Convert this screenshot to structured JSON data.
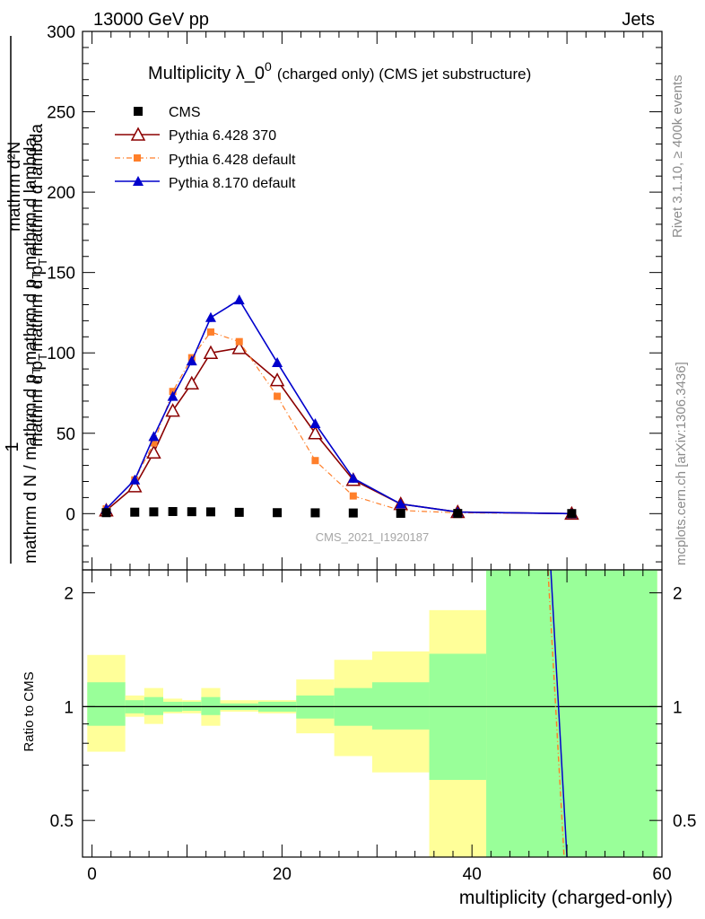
{
  "header": {
    "left": "13000 GeV pp",
    "right": "Jets"
  },
  "side_text": {
    "rivet": "Rivet 3.1.10, ≥ 400k events",
    "mcplots": "mcplots.cern.ch [arXiv:1306.3436]"
  },
  "chart_data": [
    {
      "type": "scatter",
      "title_main": "Multiplicity λ_0",
      "title_sup": "0",
      "title_sub": "(charged only) (CMS jet substructure)",
      "ylabel_top": "mathrm d²N",
      "ylabel_fracone": "1",
      "ylabel_middle": "mathrm d p",
      "ylabel_middle_sub": "T",
      "ylabel_middle_rest": "mathrm d p",
      "ylabel_middle_rest_sub": "T",
      "ylabel_middle_tail": "mathrm d lambda",
      "ylabel_bottom": "mathrm d N / mathrm d p",
      "ylabel_bottom_sub": "T",
      "ylabel_bottom_tail": "mathrm d p",
      "ylabel_bottom_sub2": "T",
      "ylabel_bottom_end": "mathrm d lambda",
      "watermark": "CMS_2021_I1920187",
      "xlim": [
        -1,
        60
      ],
      "ylim": [
        -35,
        300
      ],
      "yticks": [
        "0",
        "50",
        "100",
        "150",
        "200",
        "250",
        "300"
      ],
      "ytick_values": [
        0,
        50,
        100,
        150,
        200,
        250,
        300
      ],
      "legend_position": "top-left",
      "series": [
        {
          "name": "CMS",
          "color": "#000000",
          "marker": "square",
          "x": [
            1.5,
            4.5,
            6.5,
            8.5,
            10.5,
            12.5,
            15.5,
            19.5,
            23.5,
            27.5,
            32.5,
            38.5,
            50.5
          ],
          "y": [
            0.6,
            0.9,
            1.1,
            1.3,
            1.2,
            1.1,
            0.8,
            0.6,
            0.5,
            0.4,
            0.2,
            0.1,
            0.05
          ]
        },
        {
          "name": "Pythia 6.428 370",
          "color": "#8b0000",
          "marker": "open-triangle",
          "x": [
            1.5,
            4.5,
            6.5,
            8.5,
            10.5,
            12.5,
            15.5,
            19.5,
            23.5,
            27.5,
            32.5,
            38.5,
            50.5
          ],
          "y": [
            2,
            17,
            38,
            64,
            81,
            100,
            103,
            83,
            50,
            21,
            6,
            1,
            0
          ]
        },
        {
          "name": "Pythia 6.428 default",
          "color": "#ff7f2a",
          "marker": "square",
          "dash": true,
          "x": [
            1.5,
            4.5,
            6.5,
            8.5,
            10.5,
            12.5,
            15.5,
            19.5,
            23.5,
            27.5,
            32.5,
            38.5,
            50.5
          ],
          "y": [
            3,
            21,
            44,
            76,
            97,
            113,
            107,
            73,
            33,
            11,
            2,
            0.5,
            0
          ]
        },
        {
          "name": "Pythia 8.170 default",
          "color": "#0000cc",
          "marker": "triangle",
          "x": [
            1.5,
            4.5,
            6.5,
            8.5,
            10.5,
            12.5,
            15.5,
            19.5,
            23.5,
            27.5,
            32.5,
            38.5,
            50.5
          ],
          "y": [
            3,
            21,
            48,
            73,
            95,
            122,
            133,
            94,
            56,
            22,
            6,
            1,
            0
          ]
        }
      ]
    },
    {
      "type": "area",
      "ylabel": "Ratio to CMS",
      "xlabel": "multiplicity (charged-only)",
      "xlim": [
        -1,
        60
      ],
      "ylim": [
        0.4,
        2.3
      ],
      "xticks": [
        "0",
        "20",
        "40",
        "60"
      ],
      "xtick_values": [
        0,
        20,
        40,
        60
      ],
      "yticks": [
        "0.5",
        "1",
        "2"
      ],
      "ytick_values": [
        0.5,
        1,
        2
      ],
      "bands": [
        {
          "x0": -0.5,
          "x1": 3.5,
          "stat": [
            0.89,
            1.16
          ],
          "total": [
            0.76,
            1.37
          ]
        },
        {
          "x0": 3.5,
          "x1": 5.5,
          "stat": [
            0.96,
            1.04
          ],
          "total": [
            0.94,
            1.07
          ]
        },
        {
          "x0": 5.5,
          "x1": 7.5,
          "stat": [
            0.95,
            1.06
          ],
          "total": [
            0.9,
            1.12
          ]
        },
        {
          "x0": 7.5,
          "x1": 9.5,
          "stat": [
            0.97,
            1.03
          ],
          "total": [
            0.96,
            1.05
          ]
        },
        {
          "x0": 9.5,
          "x1": 11.5,
          "stat": [
            0.975,
            1.03
          ],
          "total": [
            0.96,
            1.04
          ]
        },
        {
          "x0": 11.5,
          "x1": 13.5,
          "stat": [
            0.95,
            1.06
          ],
          "total": [
            0.89,
            1.12
          ]
        },
        {
          "x0": 13.5,
          "x1": 17.5,
          "stat": [
            0.98,
            1.02
          ],
          "total": [
            0.97,
            1.04
          ]
        },
        {
          "x0": 17.5,
          "x1": 21.5,
          "stat": [
            0.97,
            1.03
          ],
          "total": [
            0.96,
            1.04
          ]
        },
        {
          "x0": 21.5,
          "x1": 25.5,
          "stat": [
            0.93,
            1.07
          ],
          "total": [
            0.85,
            1.18
          ]
        },
        {
          "x0": 25.5,
          "x1": 29.5,
          "stat": [
            0.89,
            1.12
          ],
          "total": [
            0.74,
            1.33
          ]
        },
        {
          "x0": 29.5,
          "x1": 35.5,
          "stat": [
            0.87,
            1.16
          ],
          "total": [
            0.67,
            1.4
          ]
        },
        {
          "x0": 35.5,
          "x1": 41.5,
          "stat": [
            0.64,
            1.38
          ],
          "total": [
            0.3,
            1.8
          ]
        },
        {
          "x0": 41.5,
          "x1": 59.5,
          "stat": [
            0.1,
            3.0
          ],
          "total": [
            0.1,
            3.0
          ]
        }
      ],
      "ratio_lines": [
        {
          "name": "Pythia 6.428 default",
          "color": "#ff7f2a",
          "x": [
            48.0,
            49.7
          ],
          "y": [
            2.3,
            0.4
          ]
        },
        {
          "name": "Pythia 8.170 default",
          "color": "#0000cc",
          "x": [
            48.3,
            50.0
          ],
          "y": [
            2.3,
            0.4
          ]
        }
      ],
      "colors": {
        "stat": "#99ff99",
        "total": "#ffff99"
      }
    }
  ]
}
